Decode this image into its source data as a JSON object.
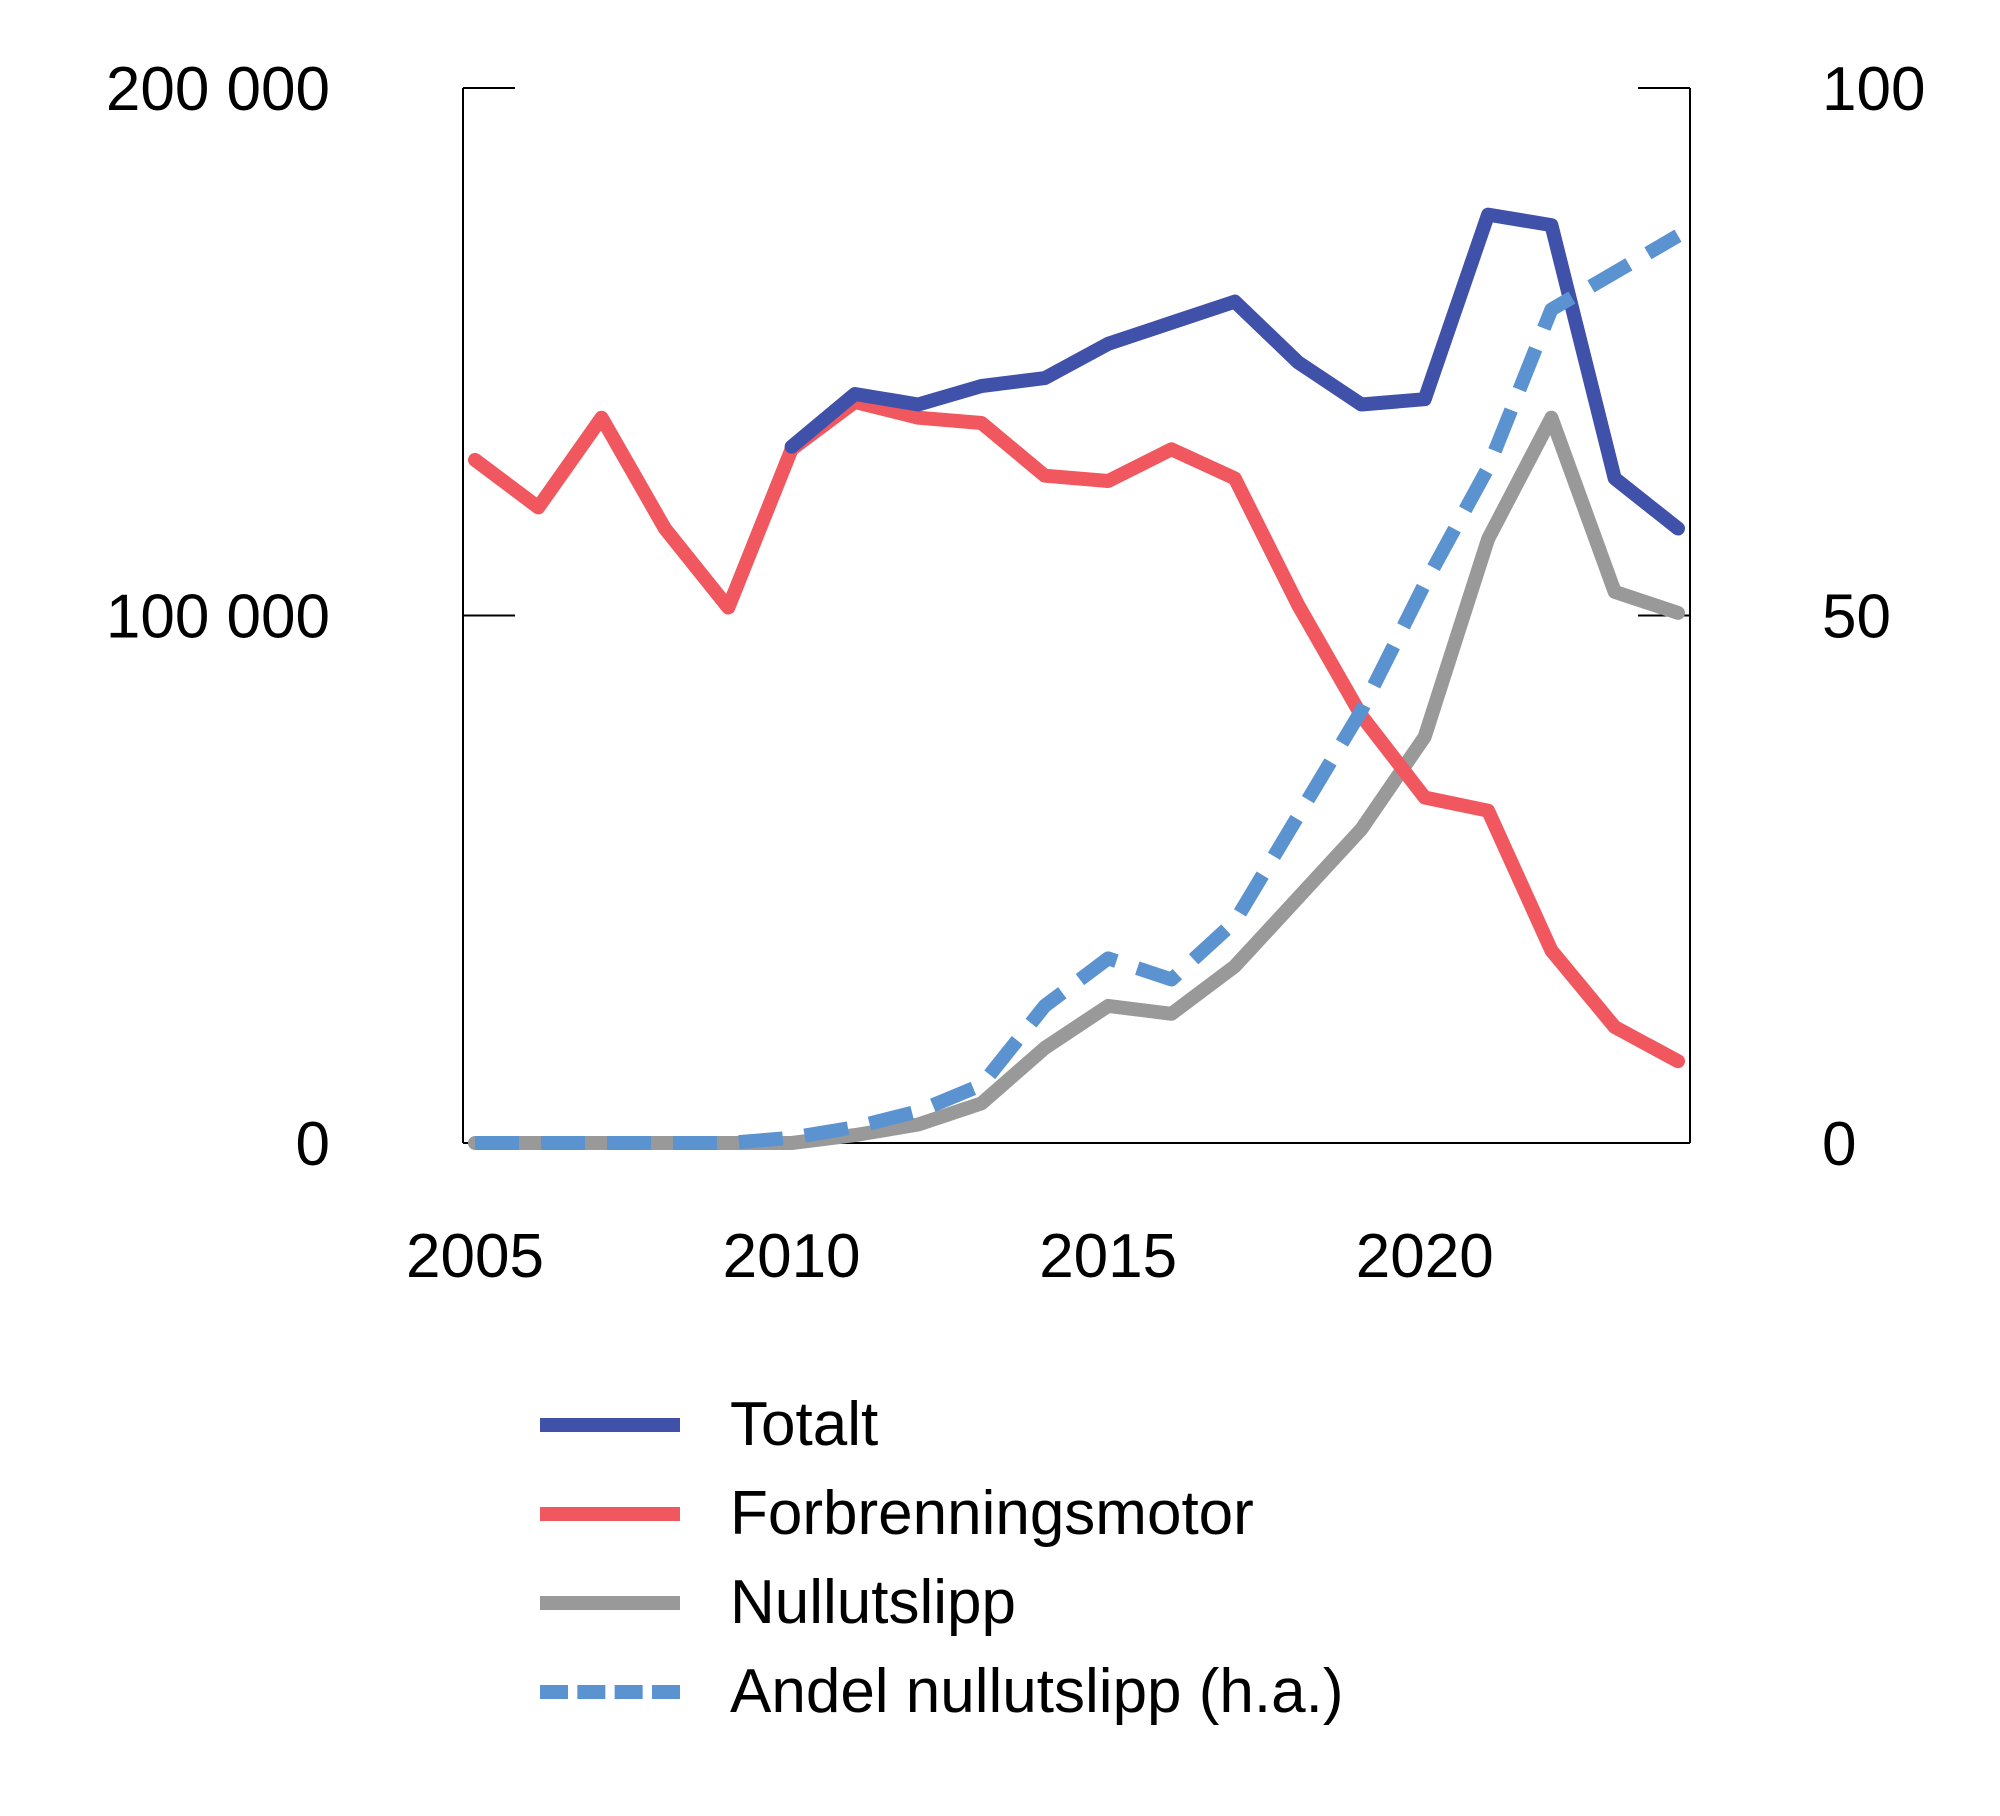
{
  "chart_data": {
    "type": "line",
    "x": [
      2005,
      2006,
      2007,
      2008,
      2009,
      2010,
      2011,
      2012,
      2013,
      2014,
      2015,
      2016,
      2017,
      2018,
      2019,
      2020,
      2021,
      2022,
      2023,
      2024
    ],
    "left_axis": {
      "ylim": [
        0,
        200000
      ],
      "ticks": [
        0,
        100000,
        200000
      ],
      "tick_labels": [
        "0",
        "100 000",
        "200 000"
      ]
    },
    "right_axis": {
      "ylim": [
        0,
        100
      ],
      "ticks": [
        0,
        50,
        100
      ],
      "tick_labels": [
        "0",
        "50",
        "100"
      ]
    },
    "x_ticks": [
      2005,
      2010,
      2015,
      2020
    ],
    "x_tick_labels": [
      "2005",
      "2010",
      "2015",
      "2020"
    ],
    "series": [
      {
        "name": "Totalt",
        "axis": "left",
        "color": "#3f51a8",
        "dash": false,
        "x": [
          2010,
          2011,
          2012,
          2013,
          2014,
          2015,
          2016,
          2017,
          2018,
          2019,
          2020,
          2021,
          2022,
          2023,
          2024
        ],
        "values": [
          132000,
          142000,
          140000,
          143500,
          145000,
          151500,
          155500,
          159500,
          148000,
          140000,
          141000,
          176000,
          174000,
          126000,
          116500
        ]
      },
      {
        "name": "Forbrenningsmotor",
        "axis": "left",
        "color": "#f0575e",
        "dash": false,
        "x": [
          2005,
          2006,
          2007,
          2008,
          2009,
          2010,
          2011,
          2012,
          2013,
          2014,
          2015,
          2016,
          2017,
          2018,
          2019,
          2020,
          2021,
          2022,
          2023,
          2024
        ],
        "values": [
          129500,
          120500,
          137500,
          116500,
          101500,
          131500,
          140500,
          137500,
          136500,
          126500,
          125500,
          131500,
          126000,
          102000,
          81000,
          65500,
          63000,
          36500,
          22000,
          15500
        ]
      },
      {
        "name": "Nullutslipp",
        "axis": "left",
        "color": "#999999",
        "dash": false,
        "x": [
          2005,
          2006,
          2007,
          2008,
          2009,
          2010,
          2011,
          2012,
          2013,
          2014,
          2015,
          2016,
          2017,
          2018,
          2019,
          2020,
          2021,
          2022,
          2023,
          2024
        ],
        "values": [
          0,
          0,
          0,
          0,
          0,
          0,
          1500,
          3500,
          7500,
          18000,
          26000,
          24500,
          33500,
          46500,
          59500,
          77000,
          114500,
          137500,
          104500,
          100500
        ]
      },
      {
        "name": "Andel nullutslipp (h.a.)",
        "axis": "right",
        "color": "#5b92d0",
        "dash": true,
        "x": [
          2005,
          2006,
          2007,
          2008,
          2009,
          2010,
          2011,
          2012,
          2013,
          2014,
          2015,
          2016,
          2017,
          2018,
          2019,
          2020,
          2021,
          2022,
          2023,
          2024
        ],
        "values": [
          0,
          0,
          0,
          0,
          0,
          0.5,
          1.5,
          3,
          5.5,
          13,
          17.5,
          15.5,
          21,
          31,
          41,
          53,
          64,
          79,
          82.5,
          86
        ]
      }
    ]
  }
}
